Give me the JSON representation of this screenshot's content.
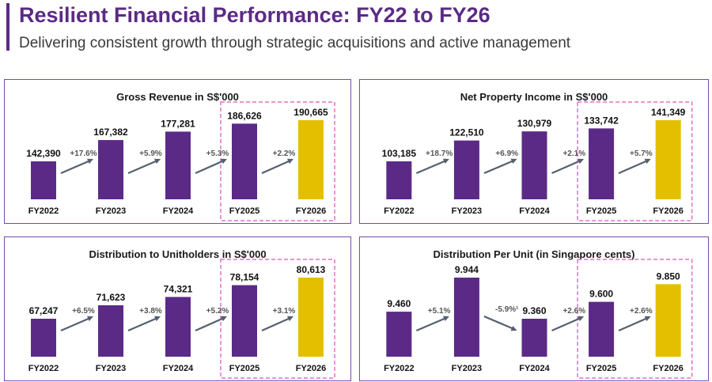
{
  "header": {
    "title": "Resilient Financial Performance: FY22 to FY26",
    "subtitle": "Delivering consistent growth through strategic acquisitions and active management"
  },
  "colors": {
    "bar": "#5b2a86",
    "forecast_bar": "#e3bf00",
    "dashed_box": "#e070c8",
    "arrow": "#55606f",
    "panel_border": "#7a4aa8"
  },
  "chart_data": [
    {
      "type": "bar",
      "title": "Gross Revenue in S$'000",
      "categories": [
        "FY2022",
        "FY2023",
        "FY2024",
        "FY2025",
        "FY2026"
      ],
      "values": [
        142390,
        167382,
        177281,
        186626,
        190665
      ],
      "value_labels": [
        "142,390",
        "167,382",
        "177,281",
        "186,626",
        "190,665"
      ],
      "growth_labels": [
        "+17.6%",
        "+5.9%",
        "+5.3%",
        "+2.2%"
      ],
      "value_weight": "bold"
    },
    {
      "type": "bar",
      "title": "Net Property Income in S$'000",
      "categories": [
        "FY2022",
        "FY2023",
        "FY2024",
        "FY2025",
        "FY2026"
      ],
      "values": [
        103185,
        122510,
        130979,
        133742,
        141349
      ],
      "value_labels": [
        "103,185",
        "122,510",
        "130,979",
        "133,742",
        "141,349"
      ],
      "growth_labels": [
        "+18.7%",
        "+6.9%",
        "+2.1%",
        "+5.7%"
      ],
      "value_weight": "bold"
    },
    {
      "type": "bar",
      "title": "Distribution to Unitholders in S$'000",
      "categories": [
        "FY2022",
        "FY2023",
        "FY2024",
        "FY2025",
        "FY2026"
      ],
      "values": [
        67247,
        71623,
        74321,
        78154,
        80613
      ],
      "value_labels": [
        "67,247",
        "71,623",
        "74,321",
        "78,154",
        "80,613"
      ],
      "growth_labels": [
        "+6.5%",
        "+3.8%",
        "+5.2%",
        "+3.1%"
      ],
      "value_weight": "normal"
    },
    {
      "type": "bar",
      "title": "Distribution Per Unit (in Singapore cents)",
      "categories": [
        "FY2022",
        "FY2023",
        "FY2024",
        "FY2025",
        "FY2026"
      ],
      "values": [
        9.46,
        9.944,
        9.36,
        9.6,
        9.85
      ],
      "value_labels": [
        "9.460",
        "9.944",
        "9.360",
        "9.600",
        "9.850"
      ],
      "growth_labels": [
        "+5.1%",
        "-5.9%¹",
        "+2.6%",
        "+2.6%"
      ],
      "value_weight": "bold"
    }
  ]
}
